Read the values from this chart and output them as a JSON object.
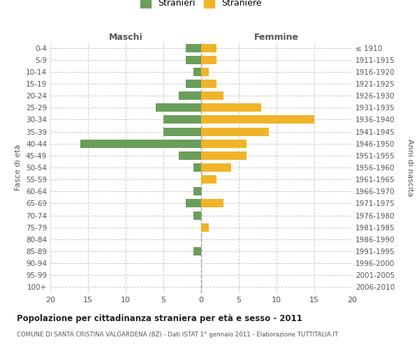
{
  "age_groups": [
    "0-4",
    "5-9",
    "10-14",
    "15-19",
    "20-24",
    "25-29",
    "30-34",
    "35-39",
    "40-44",
    "45-49",
    "50-54",
    "55-59",
    "60-64",
    "65-69",
    "70-74",
    "75-79",
    "80-84",
    "85-89",
    "90-94",
    "95-99",
    "100+"
  ],
  "birth_years": [
    "2006-2010",
    "2001-2005",
    "1996-2000",
    "1991-1995",
    "1986-1990",
    "1981-1985",
    "1976-1980",
    "1971-1975",
    "1966-1970",
    "1961-1965",
    "1956-1960",
    "1951-1955",
    "1946-1950",
    "1941-1945",
    "1936-1940",
    "1931-1935",
    "1926-1930",
    "1921-1925",
    "1916-1920",
    "1911-1915",
    "≤ 1910"
  ],
  "maschi": [
    2,
    2,
    1,
    2,
    3,
    6,
    5,
    5,
    16,
    3,
    1,
    0,
    1,
    2,
    1,
    0,
    0,
    1,
    0,
    0,
    0
  ],
  "femmine": [
    2,
    2,
    1,
    2,
    3,
    8,
    15,
    9,
    6,
    6,
    4,
    2,
    0,
    3,
    0,
    1,
    0,
    0,
    0,
    0,
    0
  ],
  "male_color": "#6a9e5a",
  "female_color": "#f0b429",
  "background_color": "#ffffff",
  "grid_color": "#cccccc",
  "title": "Popolazione per cittadinanza straniera per età e sesso - 2011",
  "subtitle": "COMUNE DI SANTA CRISTINA VALGARDENA (BZ) - Dati ISTAT 1° gennaio 2011 - Elaborazione TUTTITALIA.IT",
  "legend_maschi": "Stranieri",
  "legend_femmine": "Straniere",
  "xlabel_left": "Maschi",
  "xlabel_right": "Femmine",
  "ylabel_left": "Fasce di età",
  "ylabel_right": "Anni di nascita",
  "xlim": 20,
  "bar_height": 0.7
}
